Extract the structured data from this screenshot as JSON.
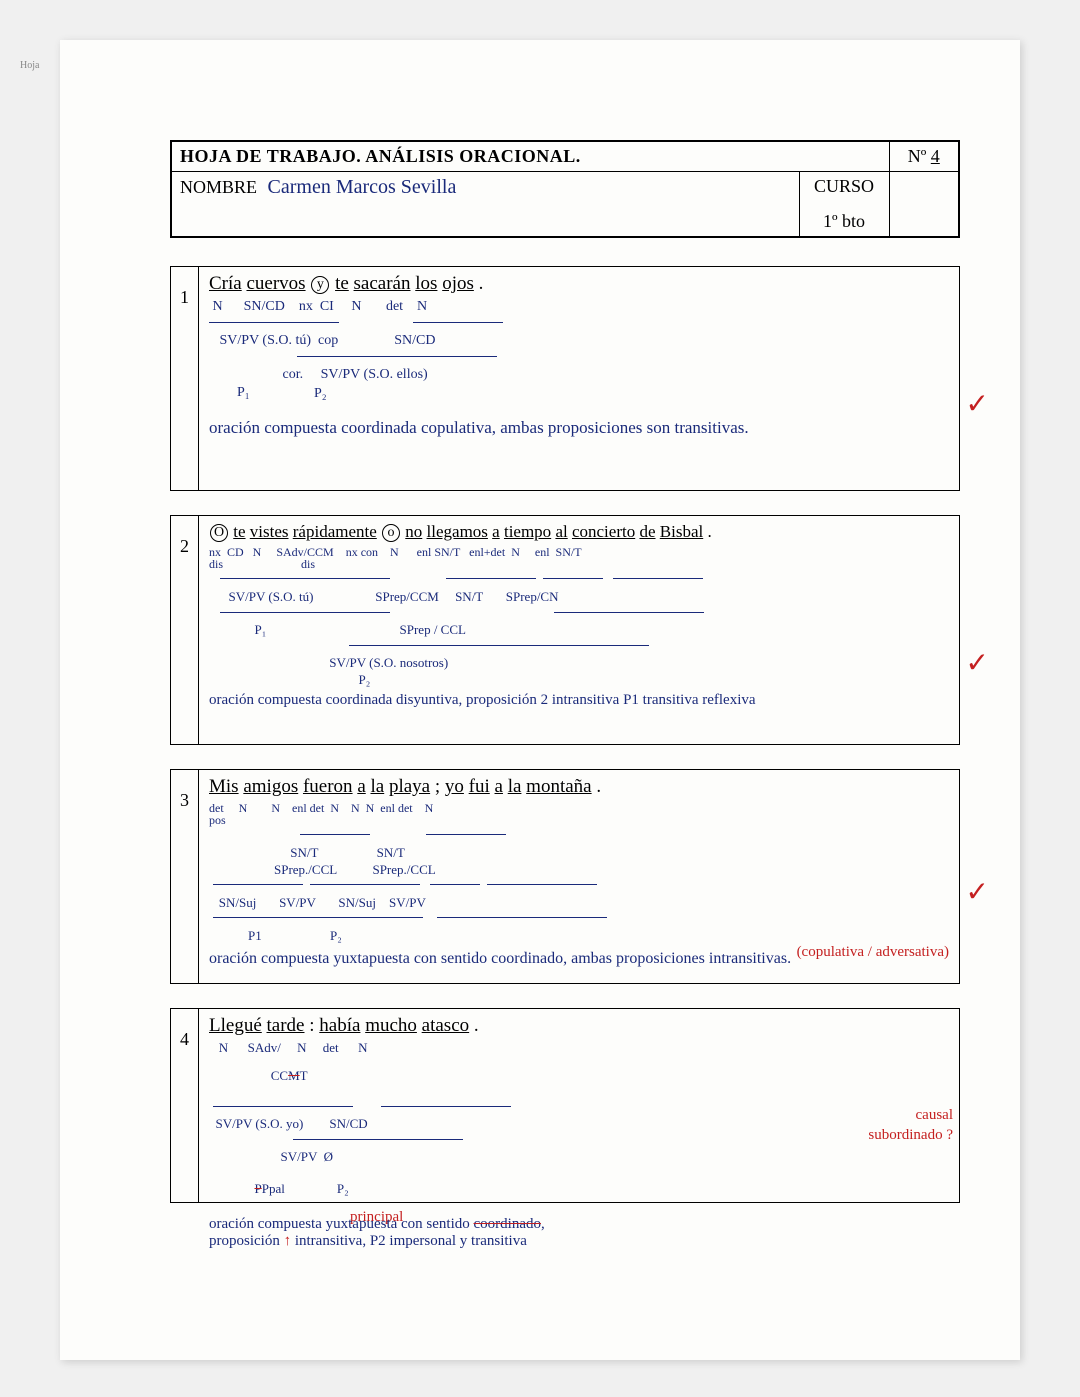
{
  "page_label": "Hoja",
  "header": {
    "title": "HOJA DE TRABAJO. ANÁLISIS ORACIONAL.",
    "num_label": "Nº",
    "num_value": "4",
    "nombre_label": "NOMBRE",
    "nombre_value": "Carmen  Marcos  Sevilla",
    "curso_label": "CURSO",
    "curso_value": "1º bto"
  },
  "ink_color": "#1a2a7a",
  "red_color": "#c42020",
  "ex1": {
    "num": "1",
    "sentence_parts": [
      "Cría",
      "cuervos",
      "y",
      "te",
      "sacarán",
      "los",
      "ojos",
      "."
    ],
    "nx_index": 2,
    "tags_line": " N      SN/CD    nx  CI     N       det    N",
    "line2": "   SV/PV (S.O. tú)  cop                SN/CD",
    "line3": "                     cor.     SV/PV (S.O. ellos)",
    "p1": "        P₁",
    "p2": "                              P₂",
    "conclusion": "oración compuesta coordinada copulativa, ambas proposiciones son transitivas."
  },
  "ex2": {
    "num": "2",
    "sentence_parts": [
      "O",
      "te",
      "vistes",
      "rápidamente",
      "o",
      "no",
      "llegamos",
      "a",
      "tiempo",
      "al",
      "concierto",
      "de",
      "Bisbal",
      "."
    ],
    "nx_indices": [
      0,
      4
    ],
    "tags_line": "nx  CD   N     SAdv/CCM    nx con    N      enl SN/T   enl+det  N     enl  SN/T",
    "line_dis": "dis                          dis",
    "line2": "      SV/PV (S.O. tú)                   SPrep/CCM     SN/T       SPrep/CN",
    "line3": "              P₁                                         SPrep / CCL",
    "line4": "                                     SV/PV (S.O. nosotros)",
    "p2": "                                              P₂",
    "conclusion": "oración compuesta coordinada disyuntiva, proposición 2 intransitiva P1 transitiva reflexiva"
  },
  "ex3": {
    "num": "3",
    "sentence_parts": [
      "Mis",
      "amigos",
      "fueron",
      "a",
      "la",
      "playa",
      ";",
      "yo",
      "fui",
      "a",
      "la",
      "montaña",
      "."
    ],
    "tags_line": "det     N        N    enl det  N    N  N  enl det    N",
    "tags_line2": "pos",
    "line2": "                         SN/T                  SN/T",
    "line3": "                    SPrep./CCL           SPrep./CCL",
    "line4": "   SN/Suj       SV/PV       SN/Suj    SV/PV",
    "p_line": "            P1                     P₂",
    "conclusion": "oración compuesta yuxtapuesta con sentido coordinado, ambas proposiciones intransitivas.",
    "red_note": "(copulativa / adversativa)"
  },
  "ex4": {
    "num": "4",
    "sentence_parts": [
      "Llegué",
      "tarde",
      ":",
      "había",
      "mucho",
      "atasco",
      "."
    ],
    "tags_line": "   N      SAdv/     N     det      N",
    "tags_line2": "           CCT",
    "line2": "  SV/PV (S.O. yo)        SN/CD",
    "line3": "                      SV/PV  Ø",
    "p_line": "      Ppal                 P₂",
    "conclusion": "oración compuesta yuxtapuesta con sentido coordinado, proposición 1 intransitiva, P2 impersonal y transitiva",
    "red_strike_word": "coordinado",
    "red_annot1": "causal",
    "red_annot2": "subordinado ?",
    "red_annot3": "principal",
    "red_up_marker": "↑"
  },
  "checkmark": "✓"
}
